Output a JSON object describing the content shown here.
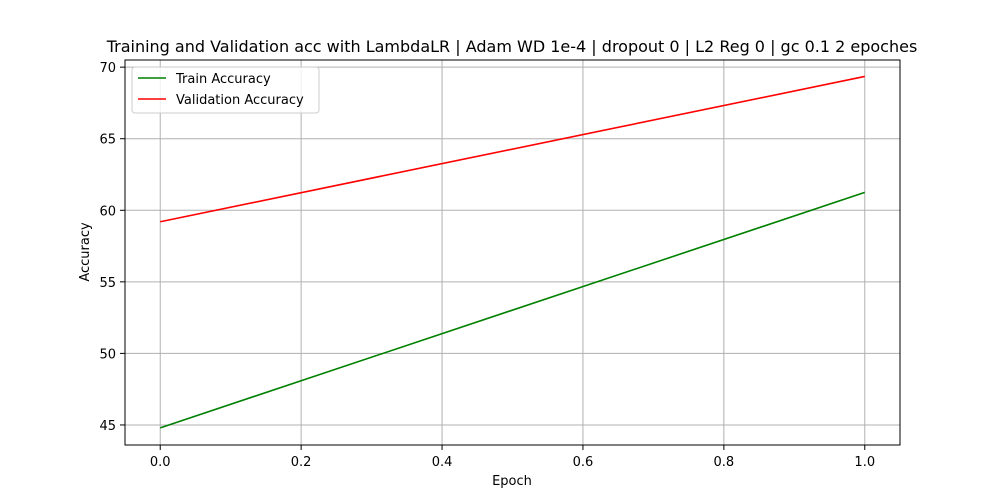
{
  "chart_data": {
    "type": "line",
    "title": "Training and Validation acc with LambdaLR | Adam WD 1e-4 | dropout 0 | L2 Reg 0 | gc 0.1 2 epoches",
    "xlabel": "Epoch",
    "ylabel": "Accuracy",
    "xlim": [
      -0.05,
      1.05
    ],
    "ylim": [
      43.6,
      70.5
    ],
    "xticks": [
      0.0,
      0.2,
      0.4,
      0.6,
      0.8,
      1.0
    ],
    "xtick_labels": [
      "0.0",
      "0.2",
      "0.4",
      "0.6",
      "0.8",
      "1.0"
    ],
    "yticks": [
      45,
      50,
      55,
      60,
      65,
      70
    ],
    "ytick_labels": [
      "45",
      "50",
      "55",
      "60",
      "65",
      "70"
    ],
    "grid": true,
    "legend_position": "top-left",
    "x": [
      0,
      1
    ],
    "series": [
      {
        "name": "Train Accuracy",
        "color": "#008000",
        "values": [
          44.8,
          61.25
        ]
      },
      {
        "name": "Validation Accuracy",
        "color": "#ff0000",
        "values": [
          59.2,
          69.35
        ]
      }
    ]
  }
}
